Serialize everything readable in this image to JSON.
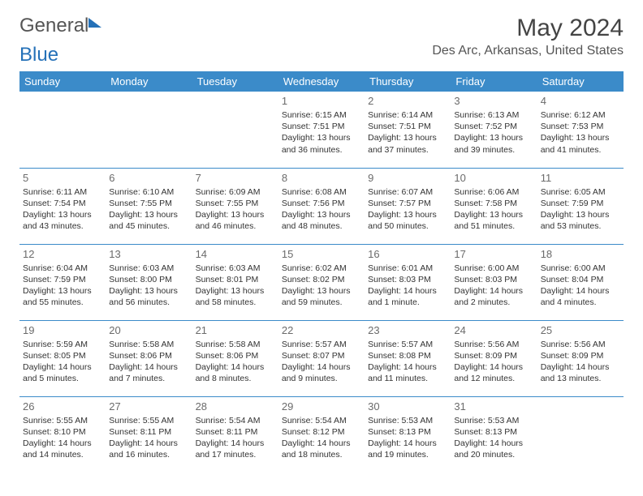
{
  "brand": {
    "part1": "General",
    "part2": "Blue"
  },
  "title": "May 2024",
  "location": "Des Arc, Arkansas, United States",
  "colors": {
    "accent": "#3b8bc9",
    "brand_blue": "#2571b8",
    "text": "#333333"
  },
  "weekdays": [
    "Sunday",
    "Monday",
    "Tuesday",
    "Wednesday",
    "Thursday",
    "Friday",
    "Saturday"
  ],
  "weeks": [
    [
      null,
      null,
      null,
      {
        "n": "1",
        "sr": "Sunrise: 6:15 AM",
        "ss": "Sunset: 7:51 PM",
        "d1": "Daylight: 13 hours",
        "d2": "and 36 minutes."
      },
      {
        "n": "2",
        "sr": "Sunrise: 6:14 AM",
        "ss": "Sunset: 7:51 PM",
        "d1": "Daylight: 13 hours",
        "d2": "and 37 minutes."
      },
      {
        "n": "3",
        "sr": "Sunrise: 6:13 AM",
        "ss": "Sunset: 7:52 PM",
        "d1": "Daylight: 13 hours",
        "d2": "and 39 minutes."
      },
      {
        "n": "4",
        "sr": "Sunrise: 6:12 AM",
        "ss": "Sunset: 7:53 PM",
        "d1": "Daylight: 13 hours",
        "d2": "and 41 minutes."
      }
    ],
    [
      {
        "n": "5",
        "sr": "Sunrise: 6:11 AM",
        "ss": "Sunset: 7:54 PM",
        "d1": "Daylight: 13 hours",
        "d2": "and 43 minutes."
      },
      {
        "n": "6",
        "sr": "Sunrise: 6:10 AM",
        "ss": "Sunset: 7:55 PM",
        "d1": "Daylight: 13 hours",
        "d2": "and 45 minutes."
      },
      {
        "n": "7",
        "sr": "Sunrise: 6:09 AM",
        "ss": "Sunset: 7:55 PM",
        "d1": "Daylight: 13 hours",
        "d2": "and 46 minutes."
      },
      {
        "n": "8",
        "sr": "Sunrise: 6:08 AM",
        "ss": "Sunset: 7:56 PM",
        "d1": "Daylight: 13 hours",
        "d2": "and 48 minutes."
      },
      {
        "n": "9",
        "sr": "Sunrise: 6:07 AM",
        "ss": "Sunset: 7:57 PM",
        "d1": "Daylight: 13 hours",
        "d2": "and 50 minutes."
      },
      {
        "n": "10",
        "sr": "Sunrise: 6:06 AM",
        "ss": "Sunset: 7:58 PM",
        "d1": "Daylight: 13 hours",
        "d2": "and 51 minutes."
      },
      {
        "n": "11",
        "sr": "Sunrise: 6:05 AM",
        "ss": "Sunset: 7:59 PM",
        "d1": "Daylight: 13 hours",
        "d2": "and 53 minutes."
      }
    ],
    [
      {
        "n": "12",
        "sr": "Sunrise: 6:04 AM",
        "ss": "Sunset: 7:59 PM",
        "d1": "Daylight: 13 hours",
        "d2": "and 55 minutes."
      },
      {
        "n": "13",
        "sr": "Sunrise: 6:03 AM",
        "ss": "Sunset: 8:00 PM",
        "d1": "Daylight: 13 hours",
        "d2": "and 56 minutes."
      },
      {
        "n": "14",
        "sr": "Sunrise: 6:03 AM",
        "ss": "Sunset: 8:01 PM",
        "d1": "Daylight: 13 hours",
        "d2": "and 58 minutes."
      },
      {
        "n": "15",
        "sr": "Sunrise: 6:02 AM",
        "ss": "Sunset: 8:02 PM",
        "d1": "Daylight: 13 hours",
        "d2": "and 59 minutes."
      },
      {
        "n": "16",
        "sr": "Sunrise: 6:01 AM",
        "ss": "Sunset: 8:03 PM",
        "d1": "Daylight: 14 hours",
        "d2": "and 1 minute."
      },
      {
        "n": "17",
        "sr": "Sunrise: 6:00 AM",
        "ss": "Sunset: 8:03 PM",
        "d1": "Daylight: 14 hours",
        "d2": "and 2 minutes."
      },
      {
        "n": "18",
        "sr": "Sunrise: 6:00 AM",
        "ss": "Sunset: 8:04 PM",
        "d1": "Daylight: 14 hours",
        "d2": "and 4 minutes."
      }
    ],
    [
      {
        "n": "19",
        "sr": "Sunrise: 5:59 AM",
        "ss": "Sunset: 8:05 PM",
        "d1": "Daylight: 14 hours",
        "d2": "and 5 minutes."
      },
      {
        "n": "20",
        "sr": "Sunrise: 5:58 AM",
        "ss": "Sunset: 8:06 PM",
        "d1": "Daylight: 14 hours",
        "d2": "and 7 minutes."
      },
      {
        "n": "21",
        "sr": "Sunrise: 5:58 AM",
        "ss": "Sunset: 8:06 PM",
        "d1": "Daylight: 14 hours",
        "d2": "and 8 minutes."
      },
      {
        "n": "22",
        "sr": "Sunrise: 5:57 AM",
        "ss": "Sunset: 8:07 PM",
        "d1": "Daylight: 14 hours",
        "d2": "and 9 minutes."
      },
      {
        "n": "23",
        "sr": "Sunrise: 5:57 AM",
        "ss": "Sunset: 8:08 PM",
        "d1": "Daylight: 14 hours",
        "d2": "and 11 minutes."
      },
      {
        "n": "24",
        "sr": "Sunrise: 5:56 AM",
        "ss": "Sunset: 8:09 PM",
        "d1": "Daylight: 14 hours",
        "d2": "and 12 minutes."
      },
      {
        "n": "25",
        "sr": "Sunrise: 5:56 AM",
        "ss": "Sunset: 8:09 PM",
        "d1": "Daylight: 14 hours",
        "d2": "and 13 minutes."
      }
    ],
    [
      {
        "n": "26",
        "sr": "Sunrise: 5:55 AM",
        "ss": "Sunset: 8:10 PM",
        "d1": "Daylight: 14 hours",
        "d2": "and 14 minutes."
      },
      {
        "n": "27",
        "sr": "Sunrise: 5:55 AM",
        "ss": "Sunset: 8:11 PM",
        "d1": "Daylight: 14 hours",
        "d2": "and 16 minutes."
      },
      {
        "n": "28",
        "sr": "Sunrise: 5:54 AM",
        "ss": "Sunset: 8:11 PM",
        "d1": "Daylight: 14 hours",
        "d2": "and 17 minutes."
      },
      {
        "n": "29",
        "sr": "Sunrise: 5:54 AM",
        "ss": "Sunset: 8:12 PM",
        "d1": "Daylight: 14 hours",
        "d2": "and 18 minutes."
      },
      {
        "n": "30",
        "sr": "Sunrise: 5:53 AM",
        "ss": "Sunset: 8:13 PM",
        "d1": "Daylight: 14 hours",
        "d2": "and 19 minutes."
      },
      {
        "n": "31",
        "sr": "Sunrise: 5:53 AM",
        "ss": "Sunset: 8:13 PM",
        "d1": "Daylight: 14 hours",
        "d2": "and 20 minutes."
      },
      null
    ]
  ]
}
